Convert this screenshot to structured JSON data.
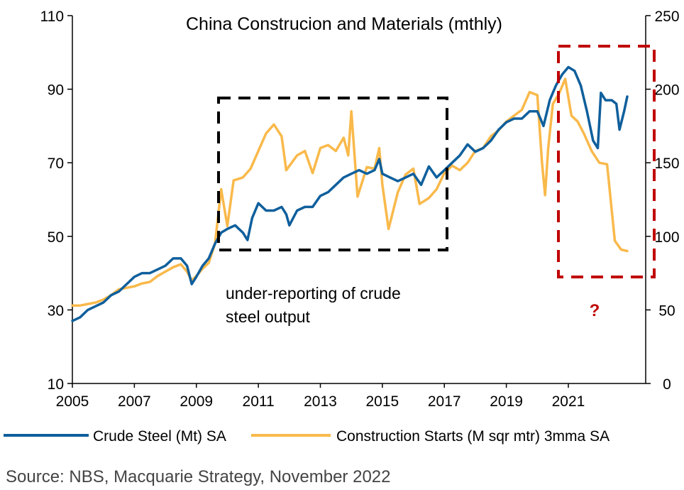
{
  "chart_data": {
    "type": "line",
    "title": "China Construcion and Materials (mthly)",
    "source": "Source: NBS, Macquarie Strategy, November 2022",
    "x_ticks": [
      "2005",
      "2007",
      "2009",
      "2011",
      "2013",
      "2015",
      "2017",
      "2019",
      "2021"
    ],
    "xlim": [
      2005,
      2022.9
    ],
    "y_left": {
      "ticks": [
        "10",
        "30",
        "50",
        "70",
        "90",
        "110"
      ],
      "range": [
        10,
        110
      ]
    },
    "y_right": {
      "ticks": [
        "0",
        "50",
        "100",
        "150",
        "200",
        "250"
      ],
      "range": [
        0,
        250
      ]
    },
    "colors": {
      "steel": "#0f5f9c",
      "construction": "#f9b94b",
      "box_black": "#000000",
      "box_red": "#c00000",
      "question": "#c00000"
    },
    "series": [
      {
        "name": "Crude Steel  (Mt) SA",
        "axis": "left",
        "points": [
          [
            2005.0,
            27
          ],
          [
            2005.25,
            28
          ],
          [
            2005.5,
            30
          ],
          [
            2005.75,
            31
          ],
          [
            2006.0,
            32
          ],
          [
            2006.25,
            34
          ],
          [
            2006.5,
            35
          ],
          [
            2006.75,
            37
          ],
          [
            2007.0,
            39
          ],
          [
            2007.25,
            40
          ],
          [
            2007.5,
            40
          ],
          [
            2007.75,
            41
          ],
          [
            2008.0,
            42
          ],
          [
            2008.25,
            44
          ],
          [
            2008.5,
            44
          ],
          [
            2008.7,
            42
          ],
          [
            2008.85,
            37
          ],
          [
            2009.0,
            39
          ],
          [
            2009.2,
            42
          ],
          [
            2009.4,
            44
          ],
          [
            2009.6,
            48
          ],
          [
            2009.8,
            51
          ],
          [
            2010.0,
            52
          ],
          [
            2010.25,
            53
          ],
          [
            2010.5,
            51
          ],
          [
            2010.65,
            49
          ],
          [
            2010.8,
            55
          ],
          [
            2011.0,
            59
          ],
          [
            2011.25,
            57
          ],
          [
            2011.5,
            57
          ],
          [
            2011.75,
            58
          ],
          [
            2011.9,
            56
          ],
          [
            2012.0,
            53
          ],
          [
            2012.25,
            57
          ],
          [
            2012.5,
            58
          ],
          [
            2012.75,
            58
          ],
          [
            2013.0,
            61
          ],
          [
            2013.25,
            62
          ],
          [
            2013.5,
            64
          ],
          [
            2013.75,
            66
          ],
          [
            2014.0,
            67
          ],
          [
            2014.25,
            68
          ],
          [
            2014.5,
            67
          ],
          [
            2014.75,
            68
          ],
          [
            2014.9,
            71
          ],
          [
            2015.0,
            67
          ],
          [
            2015.25,
            66
          ],
          [
            2015.5,
            65
          ],
          [
            2015.75,
            66
          ],
          [
            2016.0,
            67
          ],
          [
            2016.25,
            64
          ],
          [
            2016.5,
            69
          ],
          [
            2016.75,
            66
          ],
          [
            2017.0,
            68
          ],
          [
            2017.25,
            70
          ],
          [
            2017.5,
            72
          ],
          [
            2017.75,
            75
          ],
          [
            2018.0,
            73
          ],
          [
            2018.25,
            74
          ],
          [
            2018.5,
            76
          ],
          [
            2018.75,
            79
          ],
          [
            2019.0,
            81
          ],
          [
            2019.25,
            82
          ],
          [
            2019.5,
            82
          ],
          [
            2019.75,
            84
          ],
          [
            2020.0,
            84
          ],
          [
            2020.2,
            80
          ],
          [
            2020.4,
            87
          ],
          [
            2020.6,
            91
          ],
          [
            2020.8,
            94
          ],
          [
            2021.0,
            96
          ],
          [
            2021.2,
            95
          ],
          [
            2021.4,
            91
          ],
          [
            2021.6,
            84
          ],
          [
            2021.8,
            76
          ],
          [
            2021.95,
            74
          ],
          [
            2022.05,
            89
          ],
          [
            2022.2,
            87
          ],
          [
            2022.4,
            87
          ],
          [
            2022.55,
            86
          ],
          [
            2022.65,
            79
          ],
          [
            2022.8,
            84
          ],
          [
            2022.9,
            88
          ]
        ]
      },
      {
        "name": "Construction Starts (M sqr mtr) 3mma SA",
        "axis": "right",
        "points": [
          [
            2005.0,
            53
          ],
          [
            2005.25,
            53
          ],
          [
            2005.5,
            54
          ],
          [
            2005.75,
            55
          ],
          [
            2006.0,
            57
          ],
          [
            2006.25,
            60
          ],
          [
            2006.5,
            64
          ],
          [
            2006.75,
            65
          ],
          [
            2007.0,
            66
          ],
          [
            2007.25,
            68
          ],
          [
            2007.5,
            69
          ],
          [
            2007.75,
            73
          ],
          [
            2008.0,
            76
          ],
          [
            2008.25,
            79
          ],
          [
            2008.5,
            81
          ],
          [
            2008.7,
            76
          ],
          [
            2008.85,
            70
          ],
          [
            2009.0,
            73
          ],
          [
            2009.2,
            78
          ],
          [
            2009.4,
            82
          ],
          [
            2009.6,
            95
          ],
          [
            2009.8,
            132
          ],
          [
            2010.0,
            107
          ],
          [
            2010.2,
            138
          ],
          [
            2010.5,
            140
          ],
          [
            2010.75,
            146
          ],
          [
            2011.0,
            158
          ],
          [
            2011.25,
            170
          ],
          [
            2011.5,
            176
          ],
          [
            2011.75,
            168
          ],
          [
            2011.9,
            145
          ],
          [
            2012.25,
            155
          ],
          [
            2012.5,
            158
          ],
          [
            2012.75,
            143
          ],
          [
            2013.0,
            160
          ],
          [
            2013.25,
            162
          ],
          [
            2013.5,
            158
          ],
          [
            2013.75,
            167
          ],
          [
            2013.9,
            155
          ],
          [
            2014.0,
            185
          ],
          [
            2014.2,
            127
          ],
          [
            2014.5,
            147
          ],
          [
            2014.75,
            146
          ],
          [
            2014.9,
            160
          ],
          [
            2015.0,
            135
          ],
          [
            2015.2,
            105
          ],
          [
            2015.5,
            130
          ],
          [
            2015.75,
            142
          ],
          [
            2016.0,
            146
          ],
          [
            2016.2,
            122
          ],
          [
            2016.5,
            126
          ],
          [
            2016.75,
            132
          ],
          [
            2017.0,
            143
          ],
          [
            2017.25,
            148
          ],
          [
            2017.5,
            145
          ],
          [
            2017.75,
            150
          ],
          [
            2018.0,
            158
          ],
          [
            2018.25,
            160
          ],
          [
            2018.5,
            168
          ],
          [
            2018.75,
            172
          ],
          [
            2019.0,
            178
          ],
          [
            2019.25,
            182
          ],
          [
            2019.5,
            186
          ],
          [
            2019.75,
            198
          ],
          [
            2020.0,
            196
          ],
          [
            2020.15,
            150
          ],
          [
            2020.25,
            128
          ],
          [
            2020.35,
            160
          ],
          [
            2020.5,
            190
          ],
          [
            2020.7,
            197
          ],
          [
            2020.9,
            207
          ],
          [
            2021.1,
            182
          ],
          [
            2021.3,
            178
          ],
          [
            2021.5,
            170
          ],
          [
            2021.75,
            158
          ],
          [
            2022.0,
            150
          ],
          [
            2022.25,
            149
          ],
          [
            2022.5,
            97
          ],
          [
            2022.7,
            91
          ],
          [
            2022.9,
            90
          ]
        ]
      }
    ],
    "annotations": {
      "underreport_line1": "under-reporting of crude",
      "underreport_line2": "steel output",
      "question": "?"
    },
    "legend_position": "bottom"
  }
}
